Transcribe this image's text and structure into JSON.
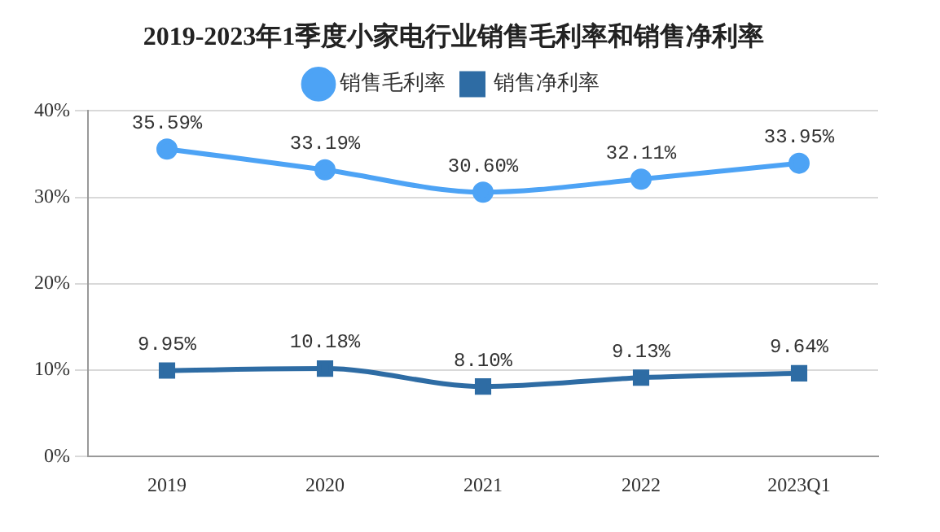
{
  "chart_data": {
    "type": "line",
    "title": "2019-2023年1季度小家电行业销售毛利率和销售净利率",
    "categories": [
      "2019",
      "2020",
      "2021",
      "2022",
      "2023Q1"
    ],
    "series": [
      {
        "name": "销售毛利率",
        "color": "#4da3f5",
        "marker": "circle",
        "values": [
          35.59,
          33.19,
          30.6,
          32.11,
          33.95
        ],
        "value_labels": [
          "35.59%",
          "33.19%",
          "30.60%",
          "32.11%",
          "33.95%"
        ]
      },
      {
        "name": "销售净利率",
        "color": "#2e6ca4",
        "marker": "square",
        "values": [
          9.95,
          10.18,
          8.1,
          9.13,
          9.64
        ],
        "value_labels": [
          "9.95%",
          "10.18%",
          "8.10%",
          "9.13%",
          "9.64%"
        ]
      }
    ],
    "ylim": [
      0,
      40
    ],
    "yticks": [
      {
        "value": 0,
        "label": "0%"
      },
      {
        "value": 10,
        "label": "10%"
      },
      {
        "value": 20,
        "label": "20%"
      },
      {
        "value": 30,
        "label": "30%"
      },
      {
        "value": 40,
        "label": "40%"
      }
    ],
    "grid": "y",
    "legend": "top",
    "line_style": "solid"
  }
}
